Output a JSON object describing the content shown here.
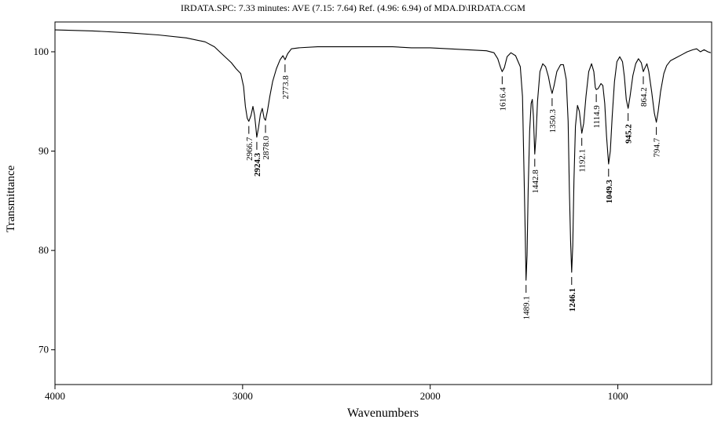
{
  "chart_data": {
    "type": "line",
    "title": "IRDATA.SPC: 7.33 minutes: AVE (7.15: 7.64) Ref. (4.96: 6.94) of MDA.D\\IRDATA.CGM",
    "xlabel": "Wavenumbers",
    "ylabel": "Transmittance",
    "xlim": [
      4000,
      500
    ],
    "ylim": [
      66.5,
      103
    ],
    "x_ticks": [
      4000,
      3000,
      2000,
      1000
    ],
    "y_ticks": [
      70,
      80,
      90,
      100
    ],
    "grid": false,
    "series": [
      {
        "color": "#000000",
        "points": [
          [
            4000,
            102.2
          ],
          [
            3800,
            102.1
          ],
          [
            3600,
            101.9
          ],
          [
            3450,
            101.7
          ],
          [
            3300,
            101.4
          ],
          [
            3200,
            101.0
          ],
          [
            3150,
            100.5
          ],
          [
            3100,
            99.6
          ],
          [
            3060,
            98.9
          ],
          [
            3035,
            98.3
          ],
          [
            3010,
            97.8
          ],
          [
            2995,
            96.5
          ],
          [
            2985,
            94.5
          ],
          [
            2975,
            93.3
          ],
          [
            2966.7,
            93.0
          ],
          [
            2955,
            93.6
          ],
          [
            2945,
            94.5
          ],
          [
            2936,
            93.6
          ],
          [
            2930,
            92.5
          ],
          [
            2924.3,
            91.4
          ],
          [
            2915,
            92.4
          ],
          [
            2905,
            93.7
          ],
          [
            2895,
            94.3
          ],
          [
            2885,
            93.3
          ],
          [
            2878,
            93.1
          ],
          [
            2868,
            94.0
          ],
          [
            2855,
            95.5
          ],
          [
            2840,
            97.0
          ],
          [
            2820,
            98.3
          ],
          [
            2800,
            99.2
          ],
          [
            2785,
            99.6
          ],
          [
            2773.8,
            99.2
          ],
          [
            2760,
            99.8
          ],
          [
            2740,
            100.3
          ],
          [
            2700,
            100.4
          ],
          [
            2600,
            100.5
          ],
          [
            2500,
            100.5
          ],
          [
            2400,
            100.5
          ],
          [
            2300,
            100.5
          ],
          [
            2200,
            100.5
          ],
          [
            2100,
            100.4
          ],
          [
            2000,
            100.4
          ],
          [
            1900,
            100.3
          ],
          [
            1800,
            100.2
          ],
          [
            1700,
            100.1
          ],
          [
            1660,
            99.9
          ],
          [
            1640,
            99.3
          ],
          [
            1625,
            98.4
          ],
          [
            1616.4,
            98.0
          ],
          [
            1605,
            98.4
          ],
          [
            1590,
            99.5
          ],
          [
            1570,
            99.9
          ],
          [
            1545,
            99.6
          ],
          [
            1520,
            98.5
          ],
          [
            1508,
            95.5
          ],
          [
            1500,
            88.0
          ],
          [
            1494,
            82.0
          ],
          [
            1489.1,
            77.0
          ],
          [
            1484,
            79.5
          ],
          [
            1478,
            86.0
          ],
          [
            1470,
            92.0
          ],
          [
            1462,
            94.8
          ],
          [
            1456,
            95.2
          ],
          [
            1450,
            93.5
          ],
          [
            1442.8,
            89.7
          ],
          [
            1436,
            91.5
          ],
          [
            1428,
            95.0
          ],
          [
            1415,
            98.0
          ],
          [
            1400,
            98.8
          ],
          [
            1385,
            98.5
          ],
          [
            1370,
            97.5
          ],
          [
            1360,
            96.5
          ],
          [
            1350.3,
            95.8
          ],
          [
            1340,
            96.6
          ],
          [
            1325,
            98.0
          ],
          [
            1305,
            98.7
          ],
          [
            1290,
            98.7
          ],
          [
            1275,
            97.2
          ],
          [
            1265,
            93.0
          ],
          [
            1258,
            86.0
          ],
          [
            1252,
            81.0
          ],
          [
            1246.1,
            77.8
          ],
          [
            1240,
            80.5
          ],
          [
            1234,
            87.0
          ],
          [
            1226,
            92.5
          ],
          [
            1215,
            94.6
          ],
          [
            1205,
            94.0
          ],
          [
            1192.1,
            91.8
          ],
          [
            1182,
            92.8
          ],
          [
            1170,
            95.5
          ],
          [
            1155,
            98.0
          ],
          [
            1140,
            98.8
          ],
          [
            1128,
            98.0
          ],
          [
            1120,
            96.4
          ],
          [
            1114.9,
            96.2
          ],
          [
            1105,
            96.3
          ],
          [
            1090,
            96.8
          ],
          [
            1080,
            96.6
          ],
          [
            1070,
            94.8
          ],
          [
            1060,
            91.5
          ],
          [
            1049.3,
            88.7
          ],
          [
            1040,
            90.0
          ],
          [
            1030,
            93.5
          ],
          [
            1018,
            97.0
          ],
          [
            1005,
            99.0
          ],
          [
            990,
            99.5
          ],
          [
            975,
            99.0
          ],
          [
            965,
            97.5
          ],
          [
            955,
            95.2
          ],
          [
            945.2,
            94.3
          ],
          [
            935,
            95.5
          ],
          [
            920,
            97.6
          ],
          [
            905,
            98.8
          ],
          [
            890,
            99.3
          ],
          [
            875,
            98.9
          ],
          [
            864.2,
            98.0
          ],
          [
            855,
            98.4
          ],
          [
            845,
            98.8
          ],
          [
            835,
            98.0
          ],
          [
            820,
            96.0
          ],
          [
            805,
            93.8
          ],
          [
            794.7,
            92.9
          ],
          [
            785,
            94.0
          ],
          [
            772,
            96.0
          ],
          [
            755,
            97.8
          ],
          [
            740,
            98.6
          ],
          [
            720,
            99.1
          ],
          [
            690,
            99.4
          ],
          [
            660,
            99.7
          ],
          [
            630,
            100.0
          ],
          [
            600,
            100.2
          ],
          [
            580,
            100.3
          ],
          [
            560,
            100.0
          ],
          [
            540,
            100.2
          ],
          [
            520,
            100.0
          ],
          [
            505,
            99.9
          ]
        ]
      }
    ],
    "annotations": [
      {
        "label": "2966.7",
        "x": 2966.7,
        "y": 93.0,
        "bold": false
      },
      {
        "label": "2924.3",
        "x": 2924.3,
        "y": 91.4,
        "bold": true
      },
      {
        "label": "2878.0",
        "x": 2878.0,
        "y": 93.1,
        "bold": false
      },
      {
        "label": "2773.8",
        "x": 2773.8,
        "y": 99.2,
        "bold": false
      },
      {
        "label": "1616.4",
        "x": 1616.4,
        "y": 98.0,
        "bold": false
      },
      {
        "label": "1489.1",
        "x": 1489.1,
        "y": 77.0,
        "bold": false
      },
      {
        "label": "1442.8",
        "x": 1442.8,
        "y": 89.7,
        "bold": false
      },
      {
        "label": "1350.3",
        "x": 1350.3,
        "y": 95.8,
        "bold": false
      },
      {
        "label": "1246.1",
        "x": 1246.1,
        "y": 77.8,
        "bold": true
      },
      {
        "label": "1192.1",
        "x": 1192.1,
        "y": 91.8,
        "bold": false
      },
      {
        "label": "1114.9",
        "x": 1114.9,
        "y": 96.2,
        "bold": false
      },
      {
        "label": "1049.3",
        "x": 1049.3,
        "y": 88.7,
        "bold": true
      },
      {
        "label": "945.2",
        "x": 945.2,
        "y": 94.3,
        "bold": true
      },
      {
        "label": "864.2",
        "x": 864.2,
        "y": 98.0,
        "bold": false
      },
      {
        "label": "794.7",
        "x": 794.7,
        "y": 92.9,
        "bold": false
      }
    ]
  }
}
